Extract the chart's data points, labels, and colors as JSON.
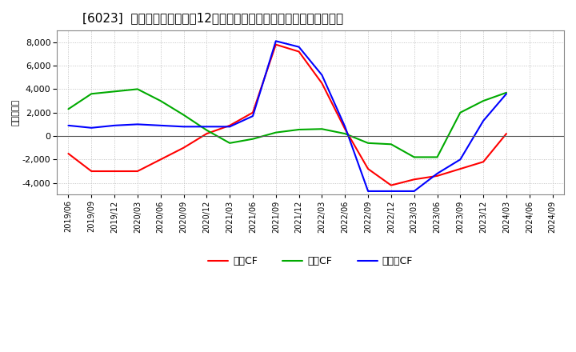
{
  "title": "[6023]  キャッシュフローの12か月移動合計の対前年同期増減額の推移",
  "ylabel": "（百万円）",
  "x_labels": [
    "2019/06",
    "2019/09",
    "2019/12",
    "2020/03",
    "2020/06",
    "2020/09",
    "2020/12",
    "2021/03",
    "2021/06",
    "2021/09",
    "2021/12",
    "2022/03",
    "2022/06",
    "2022/09",
    "2022/12",
    "2023/03",
    "2023/06",
    "2023/09",
    "2023/12",
    "2024/03",
    "2024/06",
    "2024/09"
  ],
  "eigyo_cf": [
    -1500,
    -3000,
    -3000,
    -3000,
    -2000,
    -1000,
    200,
    900,
    2000,
    7800,
    7200,
    4500,
    600,
    -2800,
    -4200,
    -3700,
    -3400,
    -2800,
    -2200,
    200,
    null,
    null
  ],
  "toshi_cf": [
    2300,
    3600,
    3800,
    4000,
    3000,
    1800,
    500,
    -600,
    -250,
    300,
    550,
    600,
    200,
    -600,
    -700,
    -1800,
    -1800,
    2000,
    3000,
    3700,
    null,
    null
  ],
  "free_cf": [
    900,
    700,
    900,
    1000,
    900,
    800,
    800,
    800,
    1700,
    8100,
    7600,
    5200,
    800,
    -4700,
    -4700,
    -4700,
    -3200,
    -2000,
    1300,
    3600,
    null,
    null
  ],
  "eigyo_color": "#ff0000",
  "toshi_color": "#00aa00",
  "free_color": "#0000ff",
  "ylim": [
    -5000,
    9000
  ],
  "yticks": [
    -4000,
    -2000,
    0,
    2000,
    4000,
    6000,
    8000
  ],
  "bg_color": "#ffffff",
  "grid_color": "#aaaaaa",
  "title_fontsize": 11,
  "legend_labels": [
    "営業CF",
    "投資CF",
    "フリーCF"
  ]
}
